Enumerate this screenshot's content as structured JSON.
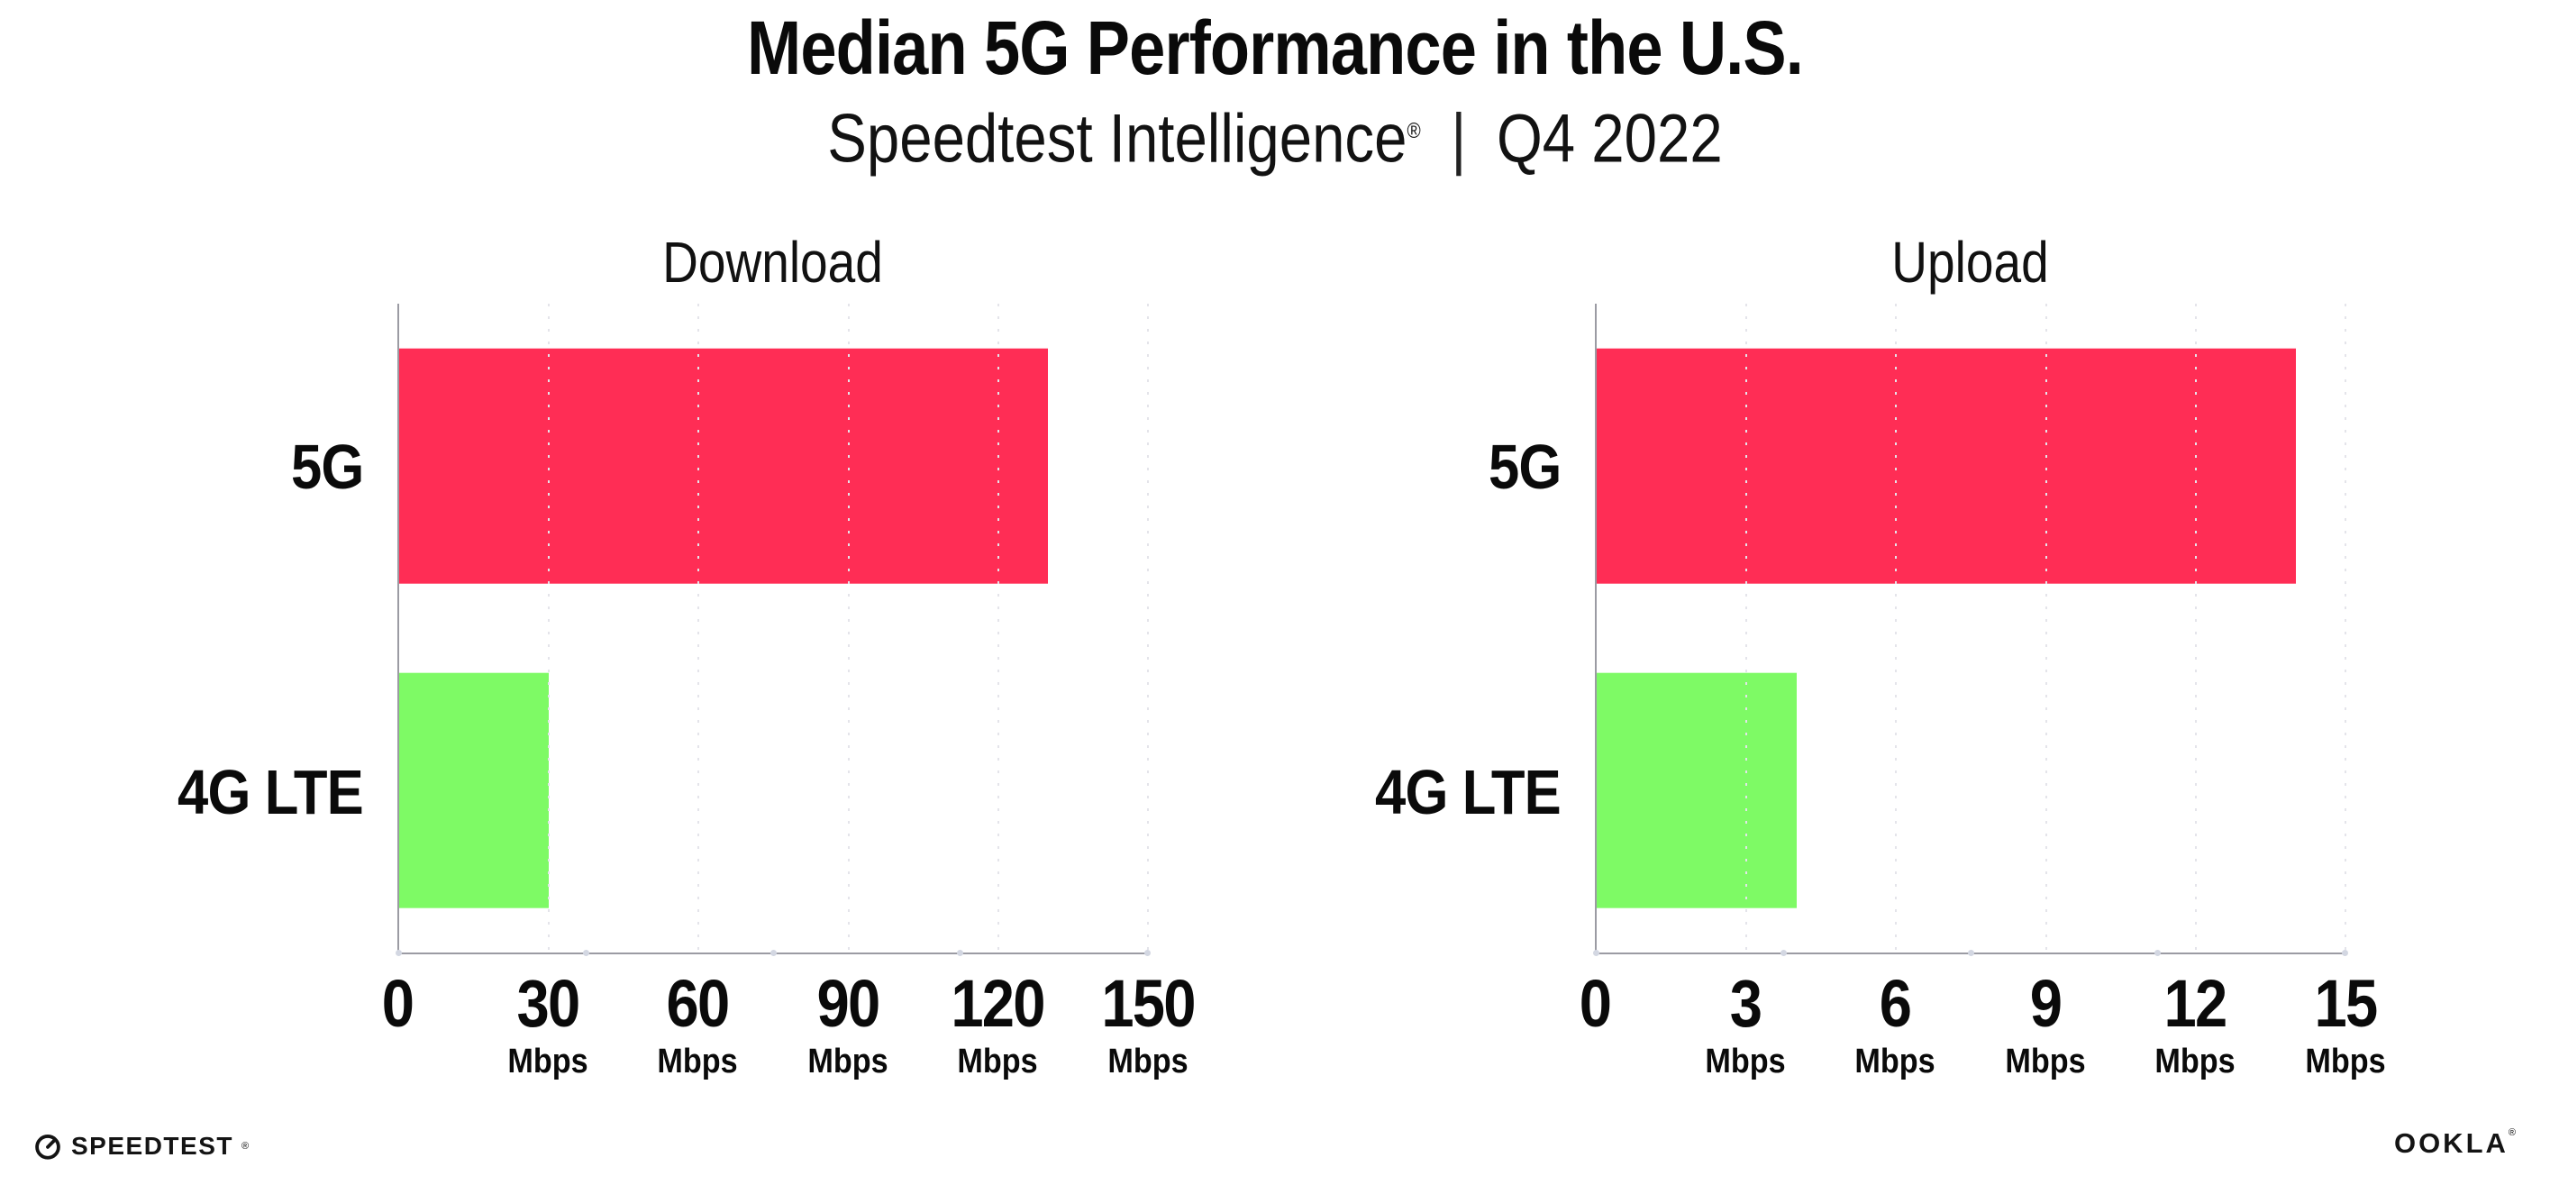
{
  "header": {
    "title": "Median 5G Performance in the U.S.",
    "subtitle_brand": "Speedtest Intelligence",
    "subtitle_reg": "®",
    "subtitle_sep": "|",
    "subtitle_period": "Q4 2022"
  },
  "chart_data": [
    {
      "type": "bar",
      "orientation": "horizontal",
      "title": "Download",
      "categories": [
        "5G",
        "4G LTE"
      ],
      "values": [
        130,
        30
      ],
      "unit": "Mbps",
      "xlim": [
        0,
        150
      ],
      "ticks": [
        0,
        30,
        60,
        90,
        120,
        150
      ],
      "tick_unit_label": "Mbps",
      "legend": "none",
      "grid": "dotted vertical gridlines at each labeled tick"
    },
    {
      "type": "bar",
      "orientation": "horizontal",
      "title": "Upload",
      "categories": [
        "5G",
        "4G LTE"
      ],
      "values": [
        14,
        4
      ],
      "unit": "Mbps",
      "xlim": [
        0,
        15
      ],
      "ticks": [
        0,
        3,
        6,
        9,
        12,
        15
      ],
      "tick_unit_label": "Mbps",
      "legend": "none",
      "grid": "dotted vertical gridlines at each labeled tick"
    }
  ],
  "colors": {
    "bar_5g": "#FF2D55",
    "bar_4g": "#7EFA65",
    "axis": "#9b9ba3",
    "gridline": "#e4e4ea",
    "axis_dot": "#d3d7e2",
    "text": "#0a0a0a"
  },
  "footer": {
    "speedtest_logo_text": "SPEEDTEST",
    "speedtest_reg": "®",
    "ookla_logo_text": "OOKLA",
    "ookla_reg": "®"
  }
}
